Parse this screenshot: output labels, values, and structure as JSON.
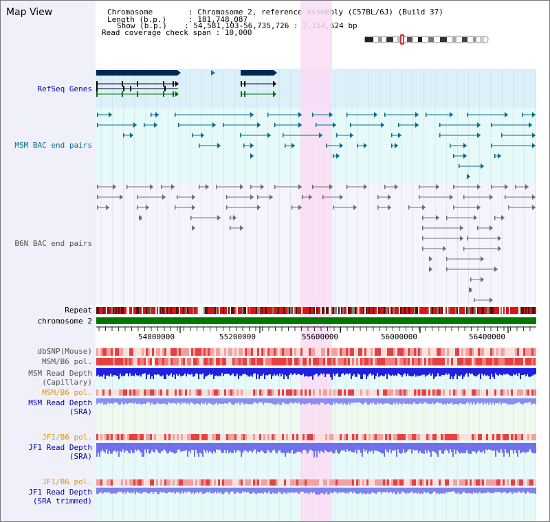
{
  "title": "Map View",
  "info": {
    "chromosome_label": "Chromosome",
    "chromosome_value": ": Chromosome 2, reference assembly (C57BL/6J) (Build 37)",
    "length_label": "Length (b.p.)",
    "length_value": ": 181,748,087",
    "show_label": "Show (b.p.)",
    "show_value": ": 54,581,103-56,735,726 : 2,154,624 bp",
    "coverage_label": "Read coverage check span",
    "coverage_value": ": 10,000"
  },
  "tracks": {
    "refseq": "RefSeq Genes",
    "msm_bac": "MSM BAC end pairs",
    "b6n_bac": "B6N BAC end pairs",
    "repeat": "Repeat",
    "chromosome": "chromosome 2",
    "dbsnp": "dbSNP(Mouse)",
    "msm_pol1": "MSM/B6 pol.",
    "msm_depth_cap_1": "MSM Read Depth",
    "msm_depth_cap_2": "(Capillary)",
    "msm_pol2": "MSM/B6 pol.",
    "msm_depth_sra_1": "MSM Read Depth",
    "msm_depth_sra_2": "(SRA)",
    "jf1_pol1": "JF1/B6 pol.",
    "jf1_depth_sra_1": "JF1 Read Depth",
    "jf1_depth_sra_2": "(SRA)",
    "jf1_pol2": "JF1/B6 pol.",
    "jf1_depth_trim_1": "JF1 Read Depth",
    "jf1_depth_trim_2": "(SRA trimmed)"
  },
  "axis": {
    "ticks": [
      "54800000",
      "55200000",
      "55600000",
      "56000000",
      "56400000"
    ]
  },
  "colors": {
    "sidebar_bg": "#f0f0fa",
    "refseq_bg": "#dcf0fa",
    "bac_bg": "#e6fafa",
    "highlight": "#fadcf5",
    "gene_dark": "#002850",
    "msm_bac": "#006e8c",
    "b6n_bac": "#6e6e6e",
    "chromosome": "#007800",
    "label_blue": "#0000a0",
    "label_orange": "#e69600",
    "label_teal": "#006e8c",
    "label_gray": "#505050"
  }
}
